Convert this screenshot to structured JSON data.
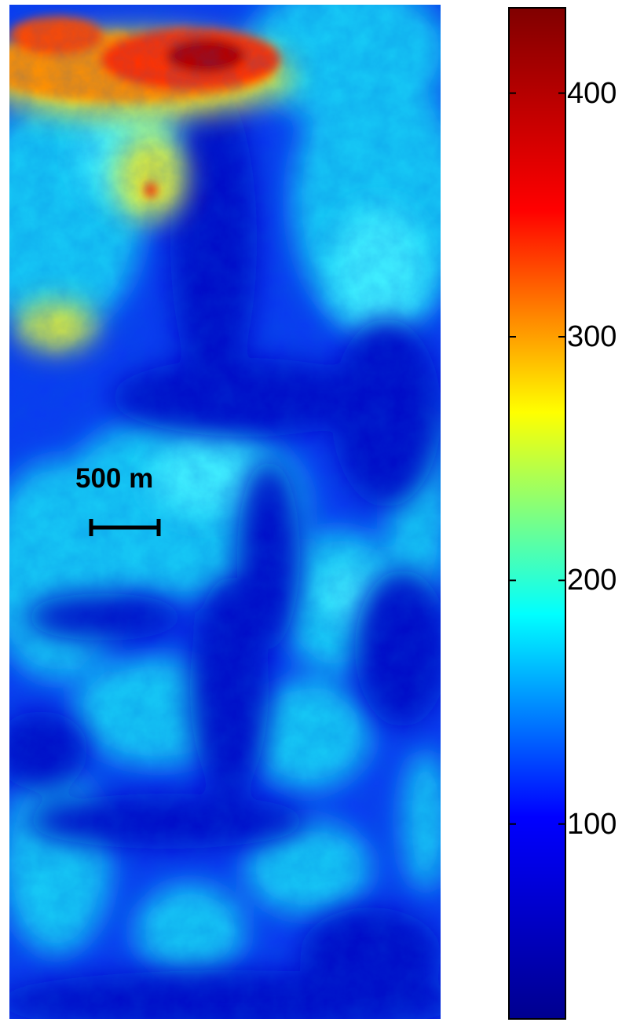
{
  "map": {
    "colormap": "jet",
    "colormap_stops": [
      "#00008f",
      "#0000ff",
      "#00ffff",
      "#ffff00",
      "#ff0000",
      "#800000"
    ]
  },
  "scale_bar": {
    "label": "500 m",
    "color": "#000000"
  },
  "colorbar": {
    "range": [
      20,
      435
    ],
    "ticks": [
      {
        "value": 100,
        "label": "100"
      },
      {
        "value": 200,
        "label": "200"
      },
      {
        "value": 300,
        "label": "300"
      },
      {
        "value": 400,
        "label": "400"
      }
    ]
  }
}
